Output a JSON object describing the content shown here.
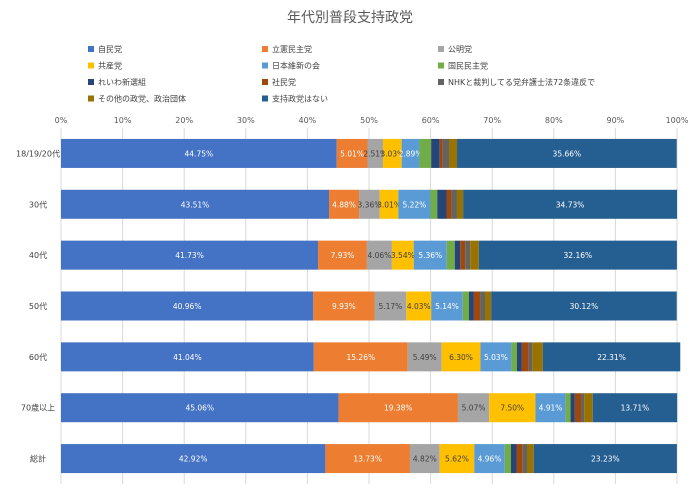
{
  "chart_data": {
    "type": "bar",
    "orientation": "horizontal",
    "stacked": "percent",
    "title": "年代別普段支持政党",
    "xlim": [
      0,
      100
    ],
    "x_tick_labels": [
      "0%",
      "10%",
      "20%",
      "30%",
      "40%",
      "50%",
      "60%",
      "70%",
      "80%",
      "90%",
      "100%"
    ],
    "grid": true,
    "legend_position": "top",
    "categories": [
      "18/19/20代",
      "30代",
      "40代",
      "50代",
      "60代",
      "70歳以上",
      "総計"
    ],
    "series": [
      {
        "name": "自民党",
        "color": "#4472c4",
        "values": [
          44.75,
          43.51,
          41.73,
          40.96,
          41.04,
          45.06,
          42.92
        ],
        "labels": [
          "44.75%",
          "43.51%",
          "41.73%",
          "40.96%",
          "41.04%",
          "45.06%",
          "42.92%"
        ]
      },
      {
        "name": "立憲民主党",
        "color": "#ed7d31",
        "values": [
          5.01,
          4.88,
          7.93,
          9.93,
          15.26,
          19.38,
          13.73
        ],
        "labels": [
          "5.01%",
          "4.88%",
          "7.93%",
          "9.93%",
          "15.26%",
          "19.38%",
          "13.73%"
        ]
      },
      {
        "name": "公明党",
        "color": "#a5a5a5",
        "values": [
          2.51,
          3.36,
          4.06,
          5.17,
          5.49,
          5.07,
          4.82
        ],
        "labels": [
          "2.51%",
          "3.36%",
          "4.06%",
          "5.17%",
          "5.49%",
          "5.07%",
          "4.82%"
        ]
      },
      {
        "name": "共産党",
        "color": "#ffc000",
        "values": [
          3.03,
          3.01,
          3.54,
          4.03,
          6.3,
          7.5,
          5.62
        ],
        "labels": [
          "3.03%",
          "3.01%",
          "3.54%",
          "4.03%",
          "6.30%",
          "7.50%",
          "5.62%"
        ]
      },
      {
        "name": "日本維新の会",
        "color": "#5b9bd5",
        "values": [
          2.89,
          5.22,
          5.36,
          5.14,
          5.03,
          4.91,
          4.96
        ],
        "labels": [
          "2.89%",
          "5.22%",
          "5.36%",
          "5.14%",
          "5.03%",
          "4.91%",
          "4.96%"
        ]
      },
      {
        "name": "国民民主党",
        "color": "#70ad47",
        "values": [
          1.9,
          1.1,
          1.3,
          1.0,
          0.9,
          0.8,
          1.0
        ],
        "labels": [
          "",
          "",
          "",
          "",
          "",
          "",
          ""
        ]
      },
      {
        "name": "れいわ新選組",
        "color": "#264478",
        "values": [
          1.4,
          1.5,
          0.9,
          0.8,
          0.8,
          0.7,
          0.9
        ],
        "labels": [
          "",
          "",
          "",
          "",
          "",
          "",
          ""
        ]
      },
      {
        "name": "社民党",
        "color": "#9e480e",
        "values": [
          0.5,
          0.8,
          0.8,
          1.0,
          1.1,
          1.0,
          1.0
        ],
        "labels": [
          "",
          "",
          "",
          "",
          "",
          "",
          ""
        ]
      },
      {
        "name": "NHKと裁判してる党弁護士法72条違反で",
        "color": "#636363",
        "values": [
          1.0,
          0.9,
          0.8,
          0.8,
          0.6,
          0.5,
          0.7
        ],
        "labels": [
          "",
          "",
          "",
          "",
          "",
          "",
          ""
        ]
      },
      {
        "name": "その他の政党、政治団体",
        "color": "#997300",
        "values": [
          1.3,
          1.0,
          1.4,
          1.0,
          1.7,
          1.4,
          1.1
        ],
        "labels": [
          "",
          "",
          "",
          "",
          "",
          "",
          ""
        ]
      },
      {
        "name": "支持政党はない",
        "color": "#255e91",
        "values": [
          35.66,
          34.73,
          32.16,
          30.12,
          22.31,
          13.71,
          23.23
        ],
        "labels": [
          "35.66%",
          "34.73%",
          "32.16%",
          "30.12%",
          "22.31%",
          "13.71%",
          "23.23%"
        ]
      }
    ]
  }
}
